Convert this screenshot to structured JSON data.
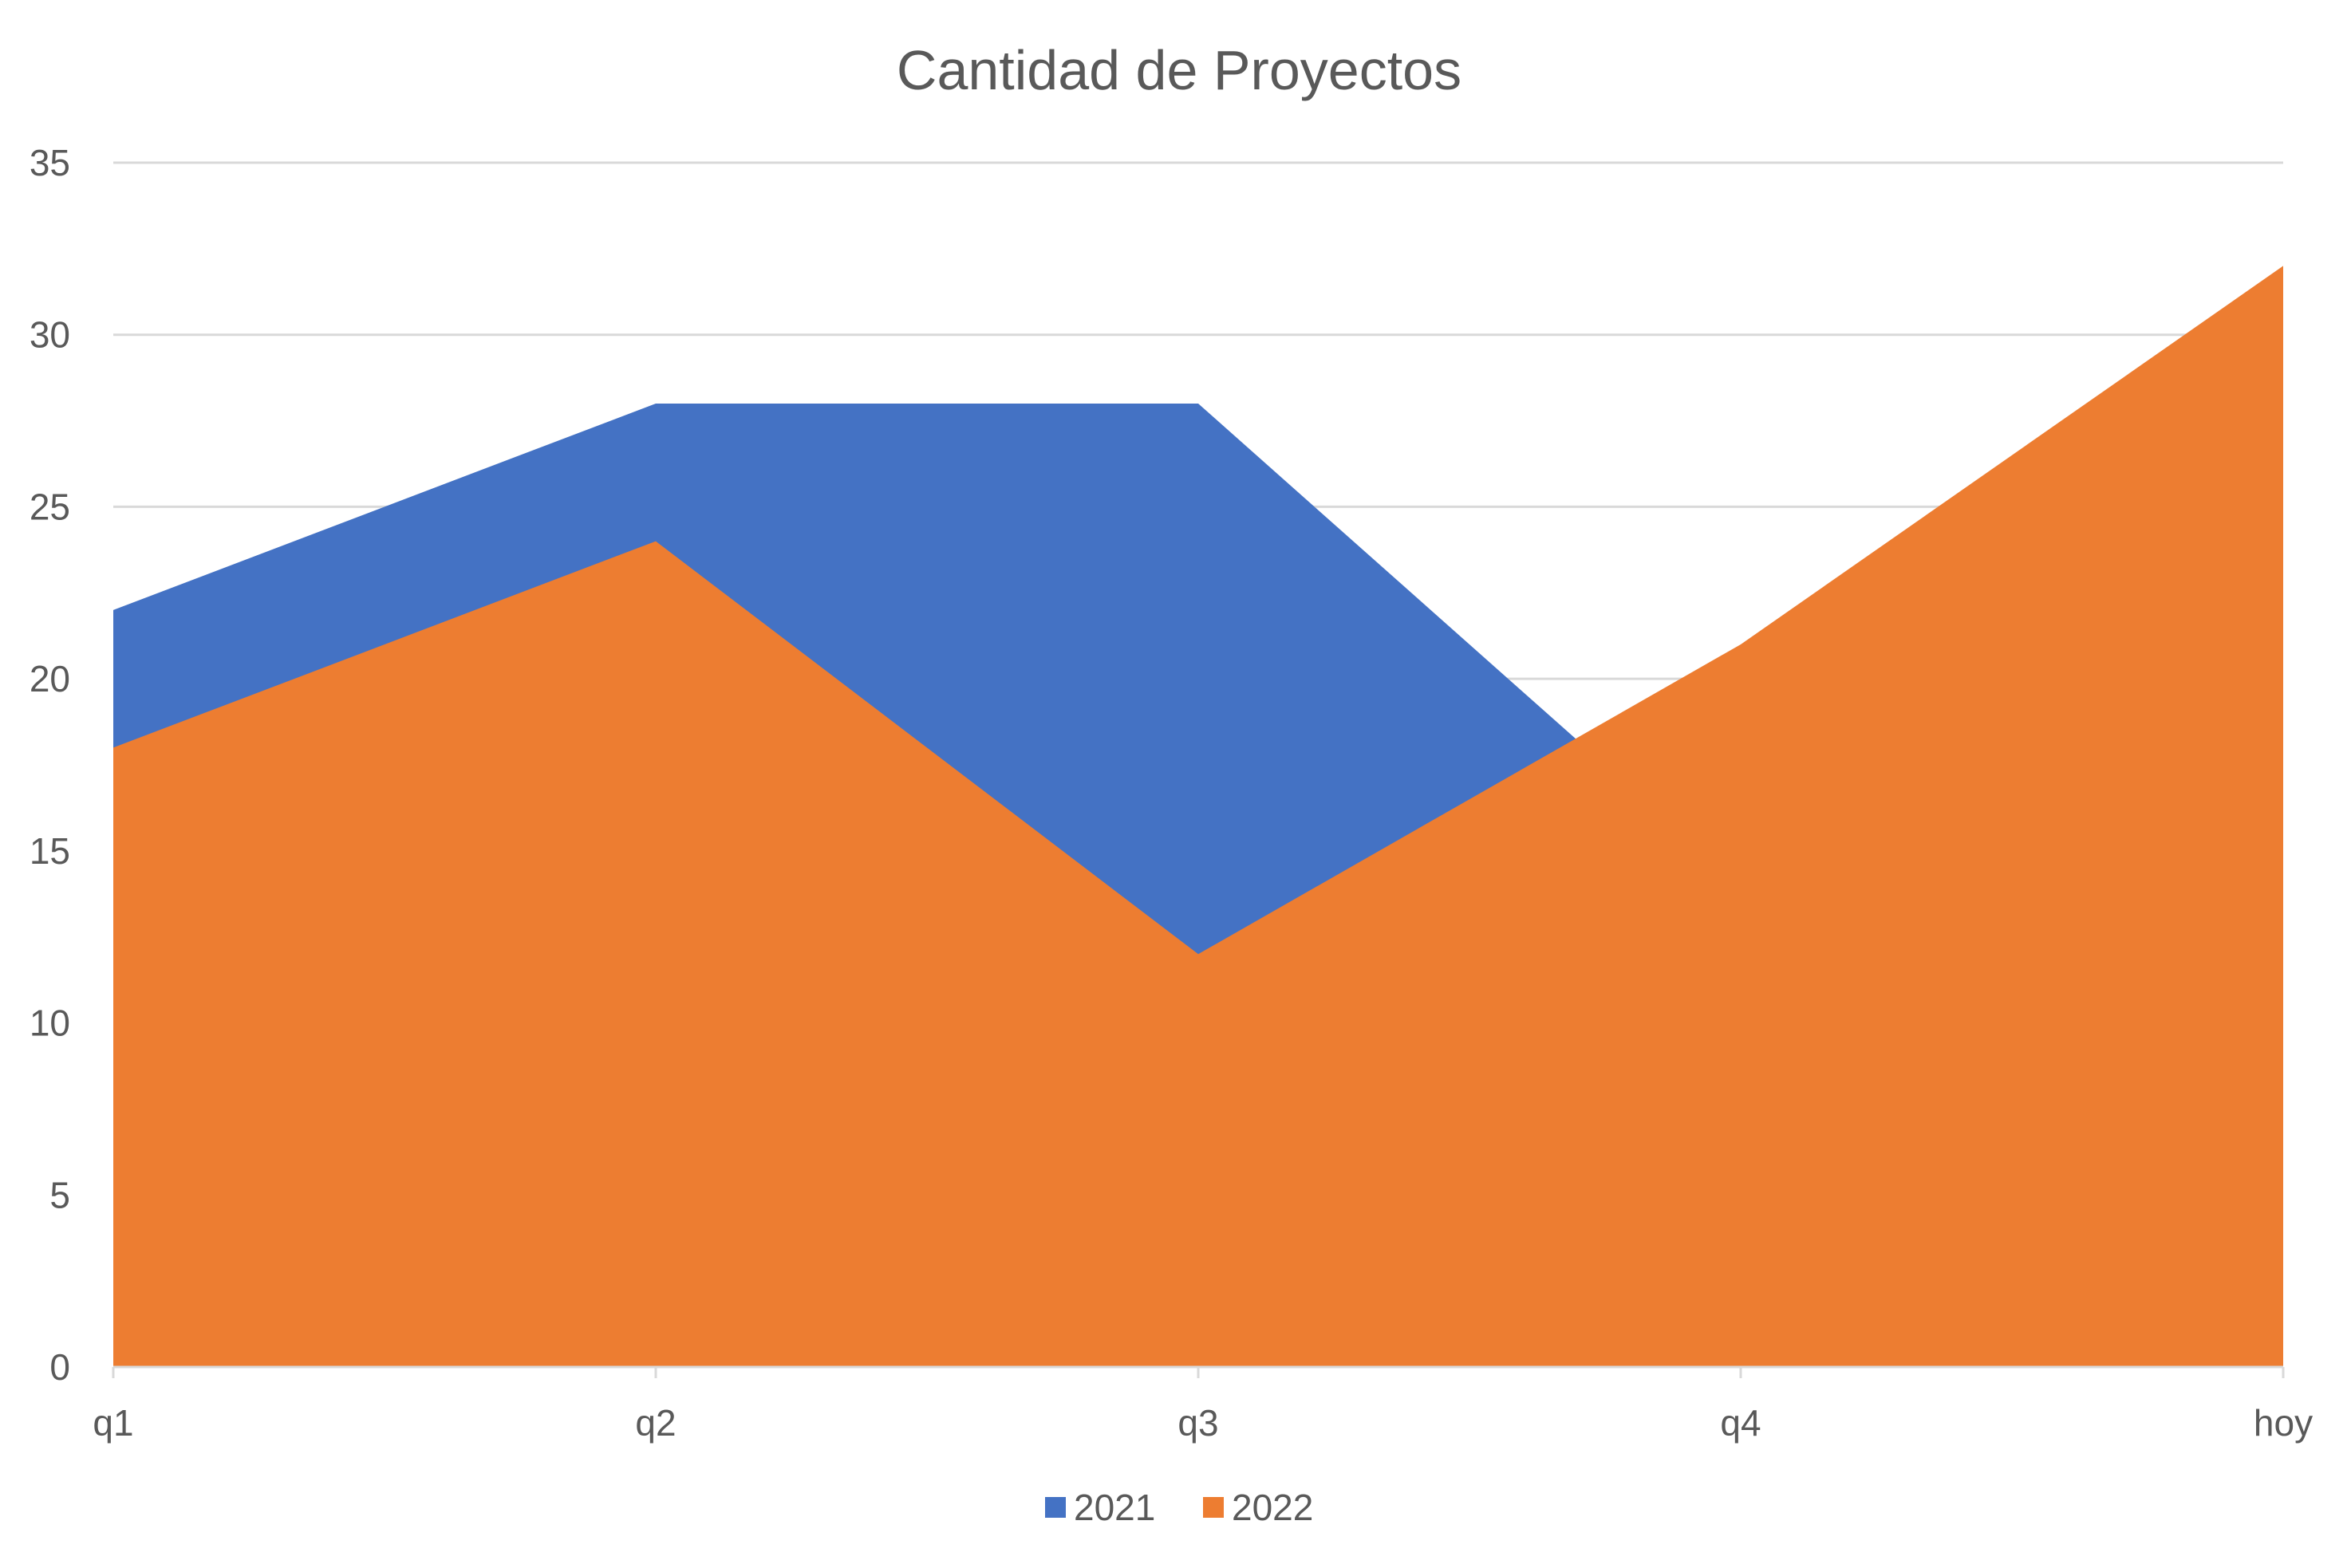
{
  "chart_data": {
    "type": "area",
    "title": "Cantidad de Proyectos",
    "categories": [
      "q1",
      "q2",
      "q3",
      "q4",
      "hoy"
    ],
    "series": [
      {
        "name": "2021",
        "values": [
          22,
          28,
          28,
          14,
          32
        ],
        "color": "#4472C4"
      },
      {
        "name": "2022",
        "values": [
          18,
          24,
          12,
          21,
          32
        ],
        "color": "#ED7D31"
      }
    ],
    "ylim": [
      0,
      35
    ],
    "yticks": [
      "0",
      "5",
      "10",
      "15",
      "20",
      "25",
      "30",
      "35"
    ],
    "grid": true,
    "legend": "bottom"
  }
}
